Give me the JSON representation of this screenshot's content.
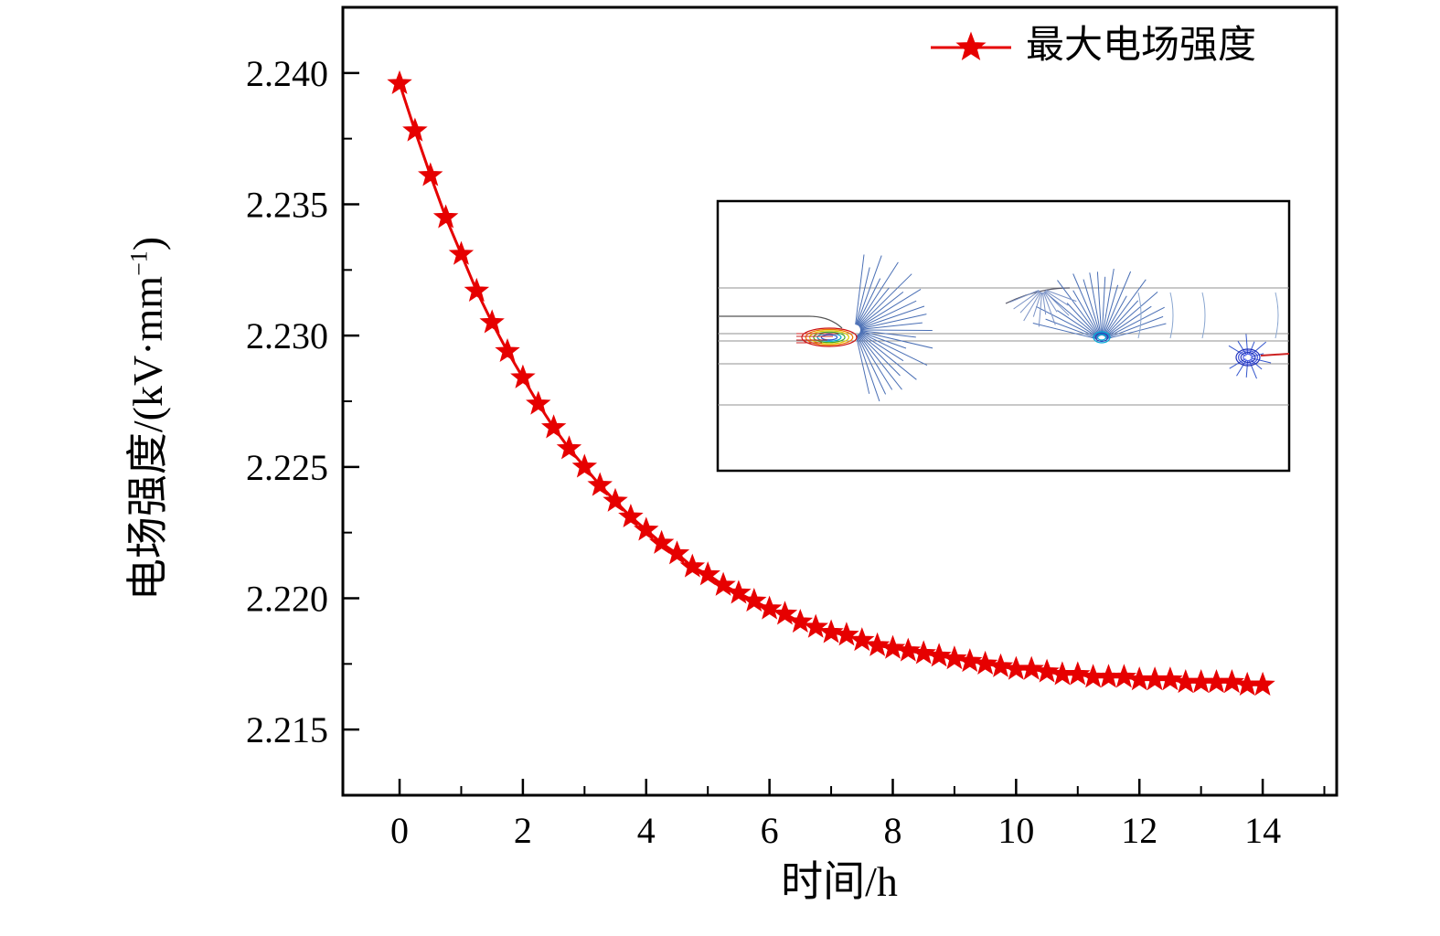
{
  "figure": {
    "background": "#ffffff"
  },
  "chart_data": {
    "type": "line",
    "title": "",
    "xlabel": "时间/h",
    "ylabel": "电场强度/(kV·mm⁻¹)",
    "ylabel_prefix": "电场强度/(kV·mm",
    "ylabel_sup": "−1",
    "ylabel_suffix": ")",
    "xlim": [
      -0.92,
      15.2
    ],
    "ylim": [
      2.2125,
      2.2425
    ],
    "x_ticks": [
      0,
      2,
      4,
      6,
      8,
      10,
      12,
      14
    ],
    "x_minor_step": 1,
    "y_ticks": [
      2.215,
      2.22,
      2.225,
      2.23,
      2.235,
      2.24
    ],
    "y_tick_labels": [
      "2.215",
      "2.220",
      "2.225",
      "2.230",
      "2.235",
      "2.240"
    ],
    "y_minor_step": 0.0025,
    "grid": false,
    "legend": {
      "position": "top-right-inside",
      "entries": [
        {
          "label": "最大电场强度",
          "marker": "star",
          "color": "#e60000"
        }
      ]
    },
    "series": [
      {
        "name": "最大电场强度",
        "marker": "star",
        "color": "#e60000",
        "line": "solid",
        "x_start": 0,
        "x_step": 0.25,
        "x_end": 14,
        "x": [
          0,
          0.25,
          0.5,
          0.75,
          1,
          1.25,
          1.5,
          1.75,
          2,
          2.25,
          2.5,
          2.75,
          3,
          3.25,
          3.5,
          3.75,
          4,
          4.25,
          4.5,
          4.75,
          5,
          5.25,
          5.5,
          5.75,
          6,
          6.25,
          6.5,
          6.75,
          7,
          7.25,
          7.5,
          7.75,
          8,
          8.25,
          8.5,
          8.75,
          9,
          9.25,
          9.5,
          9.75,
          10,
          10.25,
          10.5,
          10.75,
          11,
          11.25,
          11.5,
          11.75,
          12,
          12.25,
          12.5,
          12.75,
          13,
          13.25,
          13.5,
          13.75,
          14
        ],
        "values": [
          2.2396,
          2.2378,
          2.2361,
          2.2345,
          2.2331,
          2.2317,
          2.2305,
          2.2294,
          2.2284,
          2.2274,
          2.2265,
          2.2257,
          2.225,
          2.2243,
          2.2237,
          2.2231,
          2.2226,
          2.2221,
          2.2217,
          2.2212,
          2.2209,
          2.2205,
          2.2202,
          2.2199,
          2.2196,
          2.2194,
          2.2191,
          2.2189,
          2.2187,
          2.2186,
          2.2184,
          2.2182,
          2.2181,
          2.218,
          2.2179,
          2.2178,
          2.2177,
          2.2176,
          2.2175,
          2.2174,
          2.2173,
          2.2173,
          2.2172,
          2.2171,
          2.2171,
          2.217,
          2.217,
          2.217,
          2.2169,
          2.2169,
          2.2169,
          2.2168,
          2.2168,
          2.2168,
          2.2168,
          2.2167,
          2.2167
        ]
      }
    ],
    "inset": {
      "name": "电场分布等值线图",
      "description": "electric-field-contour-inset"
    }
  }
}
